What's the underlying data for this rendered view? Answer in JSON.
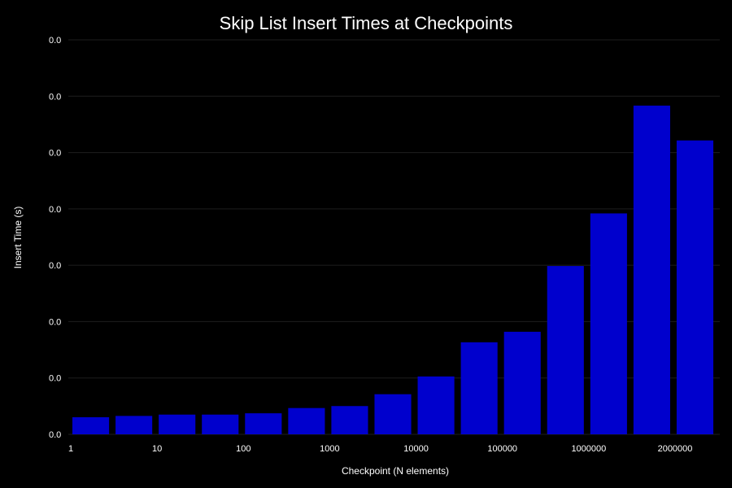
{
  "chart_data": {
    "type": "bar",
    "title": "Skip List Insert Times at Checkpoints",
    "xlabel": "Checkpoint (N elements)",
    "ylabel": "Insert Time (s)",
    "x_tick_labels": [
      "1",
      "10",
      "100",
      "1000",
      "10000",
      "100000",
      "1000000",
      "2000000"
    ],
    "y_tick_labels": [
      "0.0",
      "0.0",
      "0.0",
      "0.0",
      "0.0",
      "0.0",
      "0.0",
      "0.0"
    ],
    "ylim": [
      0,
      6
    ],
    "values": [
      0.26,
      0.28,
      0.3,
      0.3,
      0.32,
      0.4,
      0.43,
      0.61,
      0.88,
      1.4,
      1.56,
      2.56,
      3.36,
      5.0,
      4.47
    ],
    "bar_color": "#0000cd",
    "grid": true,
    "grid_color": "#1e1e1e",
    "background": "#000000"
  }
}
